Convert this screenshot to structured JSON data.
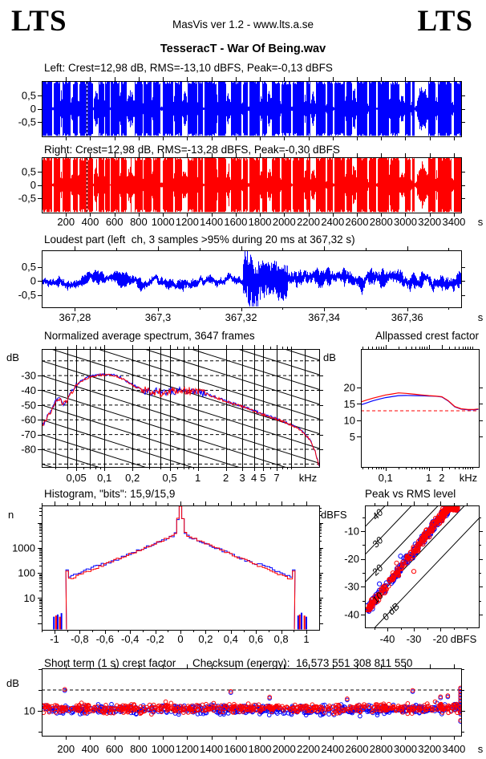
{
  "header": {
    "logo_left": "LTS",
    "logo_right": "LTS",
    "app_line": "MasVis ver 1.2 - www.lts.a.se",
    "title": "TesseracT - War Of Being.wav"
  },
  "colors": {
    "left_channel": "#0000ff",
    "right_channel": "#ff0000",
    "axis": "#000000",
    "reference_dash": "#ff0000",
    "background": "#ffffff"
  },
  "sections": {
    "left_label": "Left: Crest=12,98 dB, RMS=-13,10 dBFS, Peak=-0,13 dBFS",
    "right_label": "Right: Crest=12,98 dB, RMS=-13,28 dBFS, Peak=-0,30 dBFS",
    "loudest_title": "Loudest part (left  ch, 3 samples >95% during 20 ms at 367,32 s)",
    "spectrum_title": "Normalized average spectrum, 3647 frames",
    "allpassed_title": "Allpassed crest factor",
    "histogram_title": "Histogram, \"bits\": 15,9/15,9",
    "peakrms_title": "Peak vs RMS level",
    "shortterm_title": "Short term (1 s) crest factor",
    "checksum_label": "Checksum (energy):  16 573 551 308 811 550"
  },
  "time_axis": {
    "values": [
      200,
      400,
      600,
      800,
      1000,
      1200,
      1400,
      1600,
      1800,
      2000,
      2200,
      2400,
      2600,
      2800,
      3000,
      3200,
      3400
    ],
    "labels": [
      "200",
      "400",
      "600",
      "800",
      "1000",
      "1200",
      "1400",
      "1600",
      "1800",
      "2000",
      "2200",
      "2400",
      "2600",
      "2800",
      "3000",
      "3200",
      "3400"
    ],
    "unit": "s",
    "range_s": [
      0,
      3460
    ]
  },
  "wave_yticks": {
    "values": [
      0.5,
      0,
      -0.5
    ],
    "labels": [
      "0,5",
      "0",
      "-0,5"
    ]
  },
  "chart_data": [
    {
      "id": "waveforms",
      "type": "area",
      "description": "Stereo waveform overview, amplitude vs time",
      "channels": [
        {
          "name": "left",
          "color": "#0000ff",
          "seed": 11,
          "crest_db": "12,98",
          "rms_dbfs": "-13,10",
          "peak_dbfs": "-0,13"
        },
        {
          "name": "right",
          "color": "#ff0000",
          "seed": 12,
          "crest_db": "12,98",
          "rms_dbfs": "-13,28",
          "peak_dbfs": "-0,30"
        }
      ],
      "ylim": [
        -1.05,
        1.05
      ],
      "marker_s": 367.32,
      "envelope_segments": [
        [
          0,
          28,
          1
        ],
        [
          28,
          33,
          0.15
        ],
        [
          33,
          86,
          1
        ],
        [
          86,
          96,
          0.05
        ],
        [
          96,
          152,
          1
        ],
        [
          152,
          166,
          0.62
        ],
        [
          166,
          238,
          1
        ],
        [
          238,
          255,
          0.5
        ],
        [
          255,
          294,
          1
        ],
        [
          294,
          310,
          0.38
        ],
        [
          310,
          418,
          1
        ],
        [
          418,
          425,
          0.05
        ],
        [
          425,
          468,
          0.58
        ],
        [
          468,
          511,
          1
        ],
        [
          511,
          519,
          0.3
        ],
        [
          519,
          557,
          1
        ],
        [
          557,
          565,
          0.05
        ],
        [
          565,
          639,
          1
        ],
        [
          639,
          654,
          0.55
        ],
        [
          654,
          697,
          1
        ],
        [
          697,
          764,
          0.6
        ],
        [
          764,
          829,
          1
        ],
        [
          829,
          838,
          0.25
        ],
        [
          838,
          904,
          1
        ],
        [
          904,
          918,
          0.5
        ],
        [
          918,
          976,
          1
        ],
        [
          976,
          996,
          0.1
        ],
        [
          996,
          1084,
          1
        ],
        [
          1084,
          1098,
          0.45
        ],
        [
          1098,
          1156,
          1
        ],
        [
          1156,
          1198,
          0.55
        ],
        [
          1198,
          1280,
          1
        ],
        [
          1280,
          1290,
          0.2
        ],
        [
          1290,
          1328,
          1
        ],
        [
          1328,
          1340,
          0.05
        ],
        [
          1340,
          1436,
          1
        ],
        [
          1436,
          1450,
          0.5
        ],
        [
          1450,
          1515,
          1
        ],
        [
          1515,
          1556,
          0.5
        ],
        [
          1556,
          1646,
          1
        ],
        [
          1646,
          1660,
          0.3
        ],
        [
          1660,
          1698,
          1
        ],
        [
          1698,
          1710,
          0.07
        ],
        [
          1710,
          1798,
          1
        ],
        [
          1798,
          1818,
          0.55
        ],
        [
          1818,
          1856,
          1
        ],
        [
          1856,
          1898,
          0.6
        ],
        [
          1898,
          1960,
          1
        ],
        [
          1960,
          1973,
          0.25
        ],
        [
          1973,
          2056,
          1
        ],
        [
          2056,
          2070,
          0.06
        ],
        [
          2070,
          2163,
          1
        ],
        [
          2163,
          2178,
          0.5
        ],
        [
          2178,
          2216,
          1
        ],
        [
          2216,
          2256,
          0.55
        ],
        [
          2256,
          2340,
          1
        ],
        [
          2340,
          2353,
          0.2
        ],
        [
          2353,
          2396,
          1
        ],
        [
          2396,
          2410,
          0.07
        ],
        [
          2410,
          2498,
          1
        ],
        [
          2498,
          2513,
          0.45
        ],
        [
          2513,
          2556,
          1
        ],
        [
          2556,
          2596,
          0.6
        ],
        [
          2596,
          2680,
          1
        ],
        [
          2680,
          2693,
          0.25
        ],
        [
          2693,
          2756,
          1
        ],
        [
          2756,
          2770,
          0.06
        ],
        [
          2770,
          2860,
          1
        ],
        [
          2860,
          2876,
          0.5
        ],
        [
          2876,
          2946,
          1
        ],
        [
          2946,
          2996,
          0.45
        ],
        [
          2996,
          3040,
          1
        ],
        [
          3040,
          3053,
          0.2
        ],
        [
          3053,
          3076,
          1
        ],
        [
          3076,
          3096,
          0.12
        ],
        [
          3096,
          3183,
          0.8
        ],
        [
          3183,
          3246,
          1
        ],
        [
          3246,
          3263,
          0.4
        ],
        [
          3263,
          3376,
          1
        ],
        [
          3376,
          3396,
          0.28
        ],
        [
          3396,
          3460,
          1
        ]
      ]
    },
    {
      "id": "loudest",
      "type": "line",
      "color": "#0000ff",
      "seed": 21,
      "xlim_s": [
        367.272,
        367.373
      ],
      "xticks": {
        "values": [
          367.28,
          367.3,
          367.32,
          367.34,
          367.36
        ],
        "labels": [
          "367,28",
          "367,3",
          "367,32",
          "367,34",
          "367,36"
        ]
      },
      "x_unit": "s",
      "noise_amp": 0.15,
      "events": [
        [
          367.3203,
          367.3216,
          -0.45,
          0.95
        ],
        [
          367.3216,
          367.3227,
          -0.92,
          0.85
        ],
        [
          367.3227,
          367.324,
          -0.88,
          0.45
        ],
        [
          367.324,
          367.3256,
          -0.5,
          0.6
        ],
        [
          367.3256,
          367.3282,
          -0.42,
          0.62
        ],
        [
          367.3282,
          367.3312,
          -0.6,
          0.52
        ]
      ]
    },
    {
      "id": "spectrum",
      "type": "line",
      "frames": 3647,
      "ylabel": "dB",
      "yticks": [
        -30,
        -40,
        -50,
        -60,
        -70,
        -80
      ],
      "ylim": [
        -92,
        -12
      ],
      "xlim_khz": [
        0.0213,
        20
      ],
      "xticks": {
        "values": [
          0.05,
          0.1,
          0.2,
          0.5,
          1,
          2,
          3,
          4,
          5,
          7
        ],
        "labels": [
          "0,05",
          "0,1",
          "0,2",
          "0,5",
          "1",
          "2",
          "3",
          "4",
          "5",
          "7"
        ]
      },
      "x_unit": "kHz",
      "grid_verticals_khz": [
        0.03,
        0.04,
        0.05,
        0.07,
        0.1,
        0.2,
        0.3,
        0.4,
        0.5,
        0.7,
        1,
        2,
        3,
        4,
        5,
        7,
        10,
        14
      ],
      "diag_slope_db_per_decade": -20,
      "backbone": [
        [
          0.021,
          -66
        ],
        [
          0.024,
          -59
        ],
        [
          0.027,
          -54
        ],
        [
          0.03,
          -47.5
        ],
        [
          0.033,
          -46
        ],
        [
          0.036,
          -49.5
        ],
        [
          0.04,
          -47
        ],
        [
          0.045,
          -41
        ],
        [
          0.05,
          -36.5
        ],
        [
          0.06,
          -33
        ],
        [
          0.07,
          -31
        ],
        [
          0.085,
          -29.8
        ],
        [
          0.1,
          -29.6
        ],
        [
          0.12,
          -29.4
        ],
        [
          0.15,
          -31.5
        ],
        [
          0.2,
          -36.5
        ],
        [
          0.25,
          -39.5
        ],
        [
          0.3,
          -41
        ],
        [
          0.4,
          -41.5
        ],
        [
          0.5,
          -41
        ],
        [
          0.6,
          -40.5
        ],
        [
          0.7,
          -39.5
        ],
        [
          0.8,
          -40.5
        ],
        [
          1.0,
          -41
        ],
        [
          1.2,
          -42.5
        ],
        [
          1.5,
          -44.5
        ],
        [
          2,
          -47.5
        ],
        [
          2.5,
          -49.5
        ],
        [
          3,
          -51
        ],
        [
          4,
          -54
        ],
        [
          5,
          -56.5
        ],
        [
          6,
          -58
        ],
        [
          7,
          -59.5
        ],
        [
          8,
          -61
        ],
        [
          10,
          -63.5
        ],
        [
          12,
          -66
        ],
        [
          14,
          -69.5
        ],
        [
          16,
          -74
        ],
        [
          18,
          -81
        ],
        [
          19.3,
          -88
        ],
        [
          19.8,
          -91.5
        ]
      ],
      "series": [
        {
          "name": "left",
          "color": "#0000ff",
          "offset_db": 0.25,
          "seed": 31
        },
        {
          "name": "right",
          "color": "#ff0000",
          "offset_db": 0,
          "seed": 32
        }
      ],
      "noise_db": {
        "band_khz": [
          0.25,
          1.3
        ],
        "in_band": 2.8,
        "out_band": 0.8,
        "low_band": 1.5
      }
    },
    {
      "id": "allpassed",
      "type": "line",
      "ylabel": "dB",
      "yticks": [
        5,
        10,
        15,
        20
      ],
      "ylim": [
        -4.2,
        31.7
      ],
      "xlim_khz": [
        0.027,
        14.3
      ],
      "xticks": {
        "values": [
          0.1,
          1,
          2
        ],
        "labels": [
          "0,1",
          "1",
          "2"
        ]
      },
      "x_unit": "kHz",
      "ref_dashed_db": 12.9,
      "freqs_khz": [
        0.027,
        0.035,
        0.05,
        0.07,
        0.1,
        0.14,
        0.2,
        0.3,
        0.5,
        0.7,
        1,
        1.4,
        2,
        2.8,
        4,
        5.6,
        8,
        11,
        14
      ],
      "series": [
        {
          "name": "left",
          "color": "#0000ff",
          "values": [
            14.7,
            15.2,
            15.9,
            16.4,
            16.9,
            17.2,
            17.5,
            17.55,
            17.5,
            17.45,
            17.4,
            17.35,
            17.1,
            15.9,
            14.1,
            13.4,
            13.2,
            13.2,
            13.3
          ]
        },
        {
          "name": "right",
          "color": "#ff0000",
          "values": [
            15.6,
            16.1,
            16.7,
            17.2,
            17.7,
            18.0,
            18.35,
            18.2,
            17.9,
            17.7,
            17.5,
            17.4,
            17.2,
            16.0,
            14.2,
            13.5,
            13.3,
            13.3,
            13.45
          ]
        }
      ]
    },
    {
      "id": "histogram",
      "type": "histogram",
      "bits_label": "15,9/15,9",
      "ylabel": "n",
      "yticks": {
        "values": [
          10,
          100,
          1000
        ],
        "labels": [
          "10",
          "100",
          "1000"
        ]
      },
      "xlim": [
        -1.1,
        1.1
      ],
      "xticks": {
        "values": [
          -1,
          -0.8,
          -0.6,
          -0.4,
          -0.2,
          0,
          0.2,
          0.4,
          0.6,
          0.8,
          1
        ],
        "labels": [
          "-1",
          "-0,8",
          "-0,6",
          "-0,4",
          "-0,2",
          "0",
          "0,2",
          "0,4",
          "0,6",
          "0,8",
          "1"
        ]
      },
      "model": {
        "log10_at_zero": 3.6,
        "slope_per_unit": 2.1,
        "center_bump_log": 1.15,
        "center_width": 0.025,
        "edge": 0.9,
        "edge_spike_log": 2.08,
        "jitter_log": 0.08
      },
      "series": [
        {
          "name": "left",
          "color": "#0000ff",
          "seed": 35,
          "shoulder_adj_log": 0.09
        },
        {
          "name": "right",
          "color": "#ff0000",
          "seed": 36,
          "shoulder_adj_log": 0
        }
      ],
      "stray_bars": {
        "blue": [
          [
            -1.005,
            1.8
          ],
          [
            -0.975,
            2.2
          ],
          [
            -0.945,
            2.5
          ],
          [
            0.935,
            2.0
          ],
          [
            0.962,
            2.6
          ],
          [
            1.0,
            1.8
          ]
        ],
        "red": [
          [
            -0.988,
            2.0
          ],
          [
            -0.957,
            1.8
          ],
          [
            0.947,
            2.2
          ],
          [
            0.985,
            2.0
          ]
        ]
      }
    },
    {
      "id": "peak_rms",
      "type": "scatter",
      "ylabel": "dBFS",
      "yticks": [
        -10,
        -20,
        -30,
        -40
      ],
      "xticks": [
        -40,
        -30,
        -20
      ],
      "x_unit": "dBFS",
      "xlim": [
        -48.5,
        -5.4
      ],
      "ylim": [
        -44.7,
        -0.75
      ],
      "diagonals": {
        "offsets_db": [
          40,
          30,
          20,
          10,
          0
        ],
        "labels": [
          "40",
          "30",
          "20",
          "10",
          "0 dB"
        ]
      },
      "points": {
        "count_red": 270,
        "count_blue": 290,
        "seed_red": 41,
        "seed_blue": 40,
        "rms_min": -48,
        "rms_max": -13.5,
        "rms_pow": 1.4,
        "crest_base": 9,
        "crest_slope": 0.21,
        "crest_noise": 2.2
      },
      "extra_points": {
        "red": [
          [
            -36.5,
            -21.5
          ],
          [
            -30,
            -24.5
          ]
        ],
        "blue": [
          [
            -35,
            -19
          ],
          [
            -43,
            -29
          ]
        ]
      }
    },
    {
      "id": "short_term",
      "type": "scatter",
      "ylabel": "dB",
      "yticks": {
        "values": [
          10
        ],
        "labels": [
          "10"
        ]
      },
      "unlabeled_yticks": [
        0,
        20,
        30
      ],
      "dashed_db": [
        10,
        20
      ],
      "ylim": [
        -1.9,
        30.2
      ],
      "x_unit": "s",
      "points": {
        "count": 560,
        "seed_red": 51,
        "seed_blue": 50,
        "mean_db": 11.2,
        "sigma": 1.05,
        "end_rise_after_s": 3150
      },
      "outliers": [
        [
          190,
          20.3
        ],
        [
          1560,
          19.3
        ],
        [
          1880,
          16.6
        ],
        [
          2520,
          15.8
        ],
        [
          3060,
          19.8
        ],
        [
          3290,
          16.8
        ],
        [
          3350,
          17.3
        ]
      ],
      "end_column": {
        "t": 3455,
        "values": [
          21,
          19.5,
          18,
          16.5,
          15,
          13.5,
          12,
          10.5,
          9,
          5.5
        ]
      }
    }
  ]
}
